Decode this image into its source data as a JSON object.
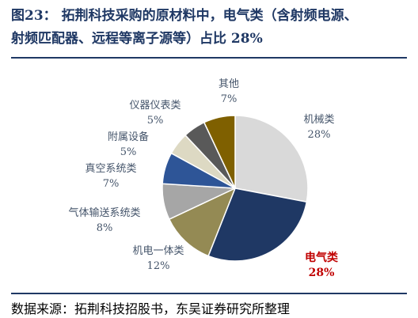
{
  "title_line1": "图23：  拓荆科技采购的原材料中，电气类（含射频电源、",
  "title_line2": "射频匹配器、远程等离子源等）占比 28%",
  "source": "数据来源：拓荆科技招股书，东吴证券研究所整理",
  "chart_data": {
    "type": "pie",
    "title": "",
    "slices": [
      {
        "name": "机械类",
        "value": 28,
        "label": "28%",
        "color": "#d9d9d9",
        "highlight": false
      },
      {
        "name": "电气类",
        "value": 28,
        "label": "28%",
        "color": "#1f3864",
        "highlight": true
      },
      {
        "name": "机电一体类",
        "value": 12,
        "label": "12%",
        "color": "#948a54",
        "highlight": false
      },
      {
        "name": "气体输送系统类",
        "value": 8,
        "label": "8%",
        "color": "#a6a6a6",
        "highlight": false
      },
      {
        "name": "真空系统类",
        "value": 7,
        "label": "7%",
        "color": "#2e5597",
        "highlight": false
      },
      {
        "name": "附属设备",
        "value": 5,
        "label": "5%",
        "color": "#ddd9c3",
        "highlight": false
      },
      {
        "name": "仪器仪表类",
        "value": 5,
        "label": "5%",
        "color": "#595959",
        "highlight": false
      },
      {
        "name": "其他",
        "value": 7,
        "label": "7%",
        "color": "#7f6000",
        "highlight": false
      }
    ],
    "start_angle_deg": 0,
    "direction": "clockwise",
    "labels_outside": true
  }
}
